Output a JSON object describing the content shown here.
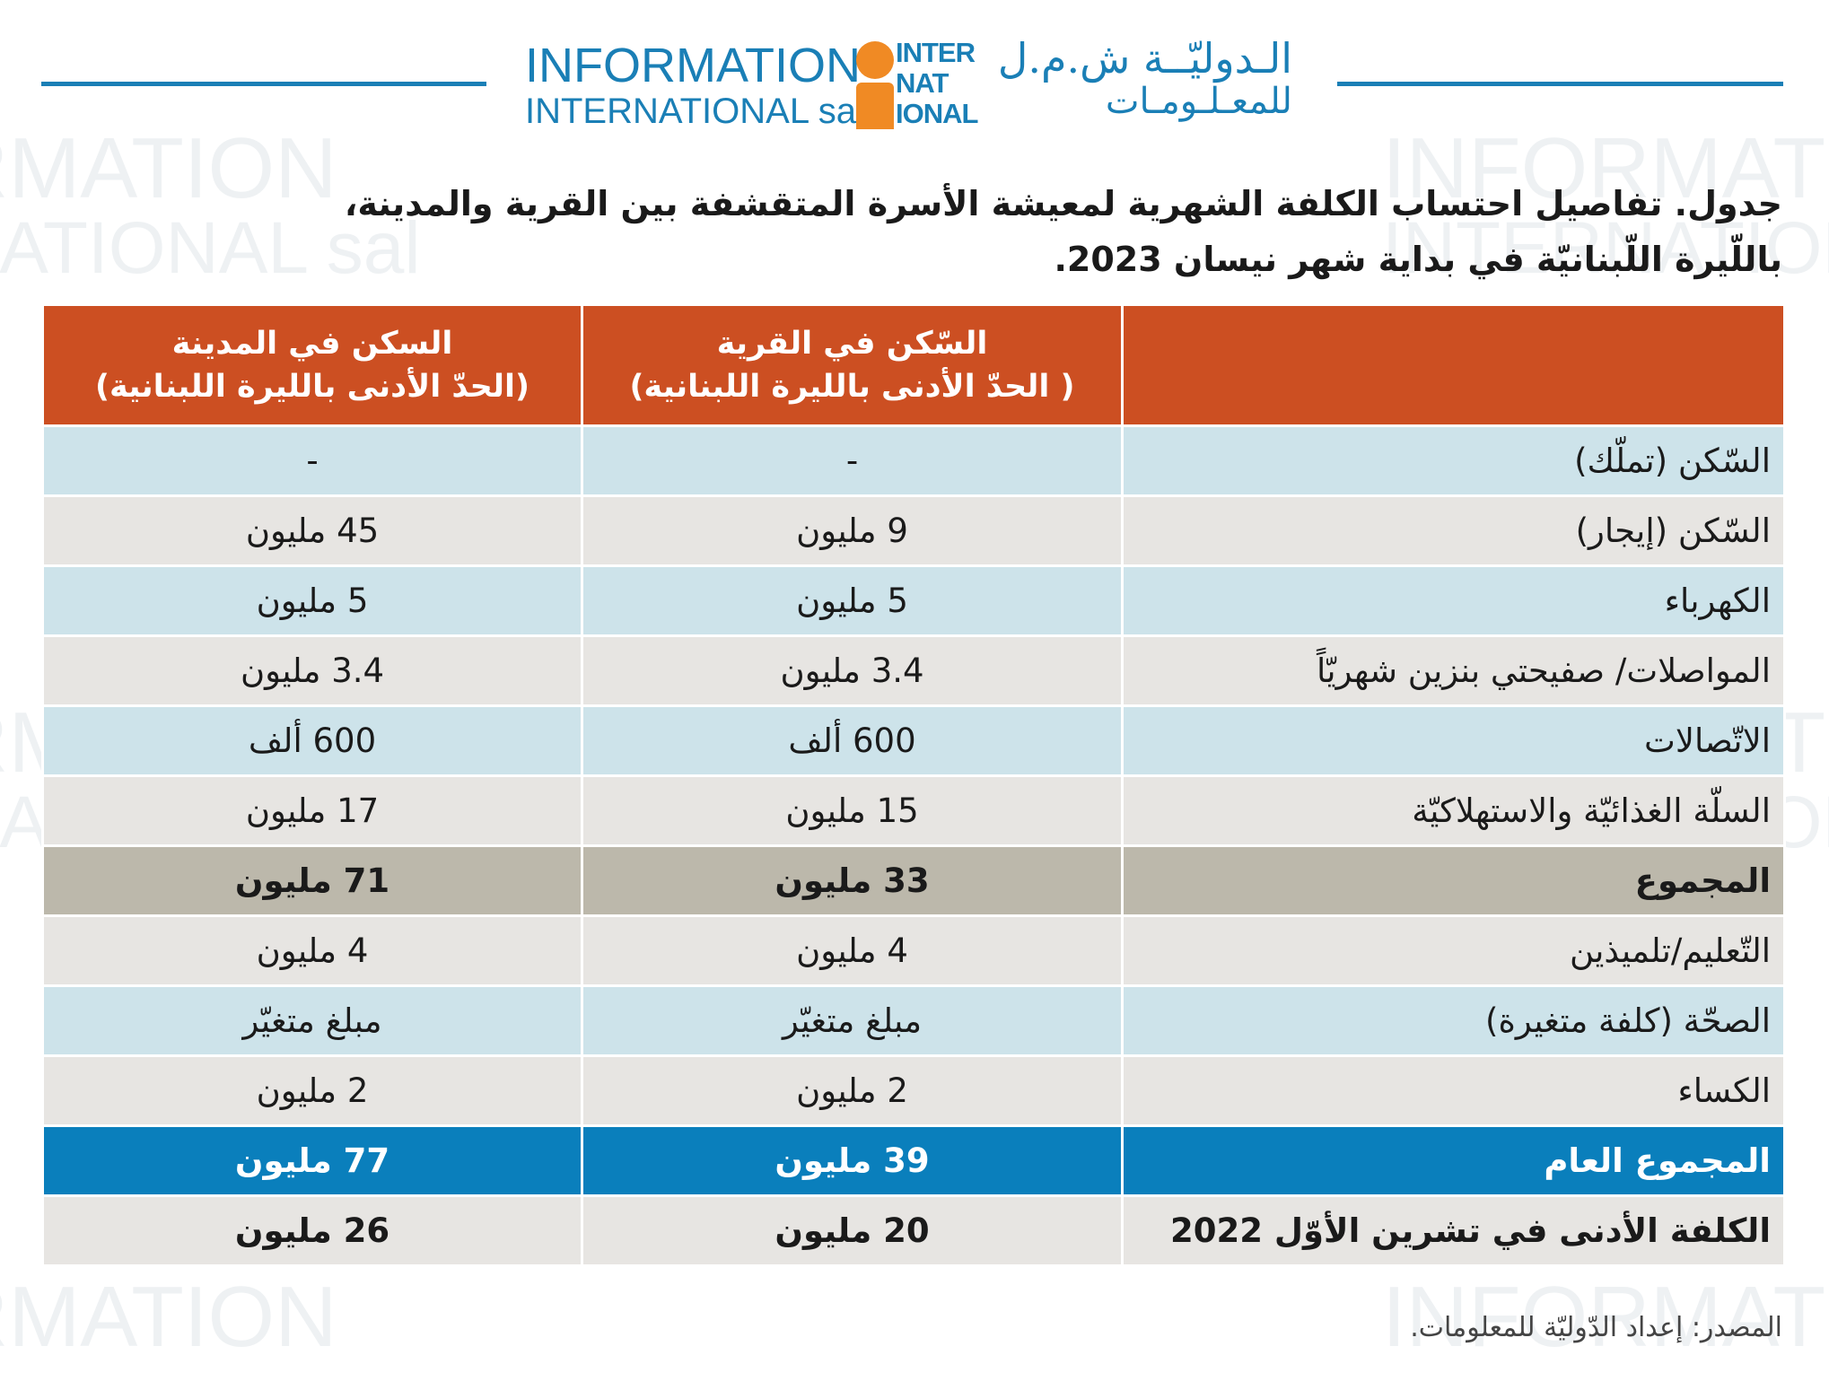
{
  "brand": {
    "name_en_line1": "INFORMATION",
    "name_en_line2": "INTERNATIONAL sal",
    "mark_letters": [
      "INTER",
      "NAT",
      "IONAL"
    ],
    "name_ar_line1": "الـدوليّــة ش.م.ل",
    "name_ar_line2": "للمعـلـومـات",
    "color": "#1a7fb6",
    "accent": "#f08a24"
  },
  "title": {
    "line1": "جدول. تفاصيل احتساب الكلفة الشهرية لمعيشة الأسرة المتقشفة بين القرية والمدينة،",
    "line2": "باللّيرة اللّبنانيّة في بداية شهر نيسان 2023."
  },
  "table": {
    "header_color": "#cc4f22",
    "columns": [
      {
        "line1": "",
        "line2": ""
      },
      {
        "line1": "السّكن في القرية",
        "line2": "( الحدّ الأدنى بالليرة اللبنانية)"
      },
      {
        "line1": "السكن في المدينة",
        "line2": "(الحدّ الأدنى  بالليرة اللبنانية)"
      }
    ],
    "rows": [
      {
        "label": "السّكن (تملّك)",
        "village": "-",
        "city": "-",
        "style": "blue"
      },
      {
        "label": "السّكن (إيجار)",
        "village": "9 مليون",
        "city": "45 مليون",
        "style": "gray"
      },
      {
        "label": "الكهرباء",
        "village": "5 مليون",
        "city": "5 مليون",
        "style": "blue"
      },
      {
        "label": "المواصلات/ صفيحتي بنزين شهريّاً",
        "village": "3.4 مليون",
        "city": "3.4 مليون",
        "style": "gray"
      },
      {
        "label": "الاتّصالات",
        "village": "600 ألف",
        "city": "600 ألف",
        "style": "blue"
      },
      {
        "label": "السلّة الغذائيّة والاستهلاكيّة",
        "village": "15 مليون",
        "city": "17 مليون",
        "style": "gray"
      },
      {
        "label": "المجموع",
        "village": "33 مليون",
        "city": "71 مليون",
        "style": "total"
      },
      {
        "label": "التّعليم/تلميذين",
        "village": "4 مليون",
        "city": "4 مليون",
        "style": "gray"
      },
      {
        "label": "الصحّة (كلفة متغيرة)",
        "village": "مبلغ متغيّر",
        "city": "مبلغ متغيّر",
        "style": "blue"
      },
      {
        "label": "الكساء",
        "village": "2 مليون",
        "city": "2 مليون",
        "style": "gray"
      },
      {
        "label": "المجموع العام",
        "village": "39 مليون",
        "city": "77 مليون",
        "style": "grand"
      },
      {
        "label": "الكلفة الأدنى في تشرين الأوّل 2022",
        "village": "20 مليون",
        "city": "26 مليون",
        "style": "min"
      }
    ]
  },
  "source": "المصدر: إعداد الدّوليّة للمعلومات."
}
